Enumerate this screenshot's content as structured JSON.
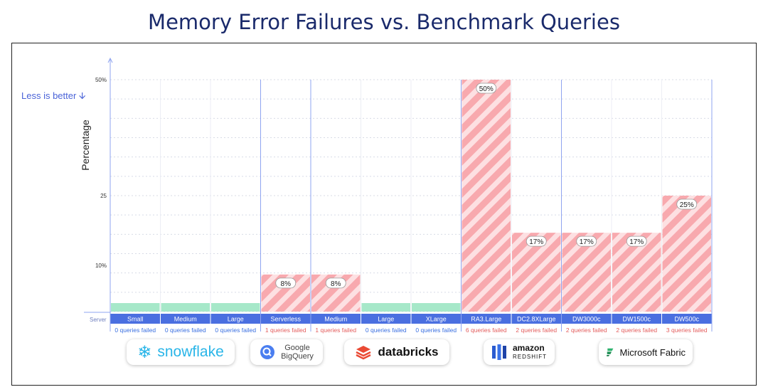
{
  "page": {
    "title": "Memory Error Failures vs. Benchmark Queries",
    "hint": "Less is better"
  },
  "chart_data": {
    "type": "bar",
    "title": "Memory Error Failures vs. Benchmark Queries",
    "ylabel": "Percentage",
    "yticks": [
      "50%",
      "25",
      "10%"
    ],
    "ytick_values": [
      50,
      25,
      10
    ],
    "ylim": [
      0,
      50
    ],
    "row_label": "Server",
    "categories": [
      "Small",
      "Medium",
      "Large",
      "Serverless",
      "Medium",
      "Large",
      "XLarge",
      "RA3.Large",
      "DC2.8XLarge",
      "DW3000c",
      "DW1500c",
      "DW500c"
    ],
    "values": [
      0,
      0,
      0,
      8,
      8,
      0,
      0,
      50,
      17,
      17,
      17,
      25
    ],
    "value_labels": [
      "",
      "",
      "",
      "8%",
      "8%",
      "",
      "",
      "50%",
      "17%",
      "17%",
      "17%",
      "25%"
    ],
    "failed_labels": [
      "0 queries failed",
      "0 queries failed",
      "0 queries failed",
      "1 queries failed",
      "1 queries failed",
      "0 queries failed",
      "0 queries failed",
      "6 queries failed",
      "2 queries failed",
      "2 queries failed",
      "2 queries failed",
      "3 queries failed"
    ],
    "groups": [
      {
        "vendor": "snowflake",
        "start": 0,
        "end": 2
      },
      {
        "vendor": "Google BigQuery",
        "start": 3,
        "end": 3
      },
      {
        "vendor": "databricks",
        "start": 4,
        "end": 6
      },
      {
        "vendor": "amazon redshift",
        "start": 7,
        "end": 8
      },
      {
        "vendor": "Microsoft Fabric",
        "start": 9,
        "end": 11
      }
    ],
    "grid": true,
    "colors": {
      "pass": "#a6e8c9",
      "fail": "#f8a9ae",
      "server_bar": "#4a6fe0",
      "fail_text": "#e35d5d",
      "pass_text": "#3a6fe0"
    }
  },
  "logos": {
    "snowflake": {
      "name": "snowflake",
      "icon": "snowflake-icon"
    },
    "bigquery": {
      "line1": "Google",
      "line2": "BigQuery",
      "icon": "bigquery-icon"
    },
    "databricks": {
      "name": "databricks",
      "icon": "databricks-icon"
    },
    "redshift": {
      "line1": "amazon",
      "line2": "REDSHIFT",
      "icon": "redshift-icon"
    },
    "fabric": {
      "name": "Microsoft Fabric",
      "icon": "fabric-icon"
    }
  }
}
